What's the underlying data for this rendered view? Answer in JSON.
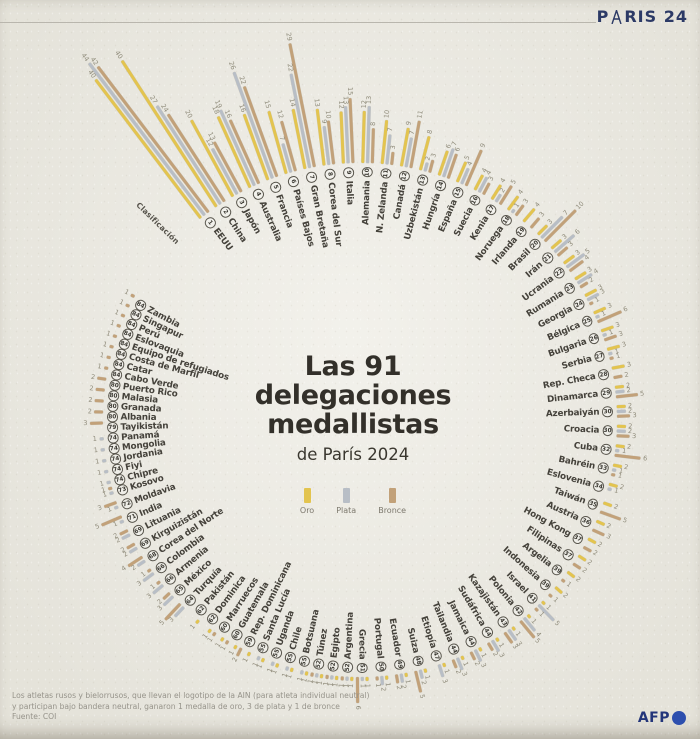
{
  "header": {
    "brand_p": "P",
    "brand_rest": "RIS 24"
  },
  "title": {
    "line1": "Las 91 delegaciones",
    "line2": "medallistas",
    "subtitle": "de París 2024"
  },
  "ranking_label": "Clasificación",
  "legend": {
    "items": [
      {
        "label": "Oro",
        "color": "#e3c44f"
      },
      {
        "label": "Plata",
        "color": "#b8bec6"
      },
      {
        "label": "Bronce",
        "color": "#c2a179"
      }
    ]
  },
  "footer": {
    "note_line1": "Los atletas rusos y bielorrusos, que llevan el logotipo de la AIN (para atleta individual neutral)",
    "note_line2": "y participan bajo bandera neutral, ganaron 1 medalla de oro, 3 de plata y 1 de bronce",
    "source": "Fuente: COI"
  },
  "logo": "AFP",
  "chart_data": {
    "type": "radial-bar",
    "title": "Las 91 delegaciones medallistas de París 2024",
    "legend": [
      "Oro",
      "Plata",
      "Bronce"
    ],
    "legend_position": "center",
    "max_value": 44,
    "colors": {
      "oro": "#e3c44f",
      "plata": "#b8bec6",
      "bronce": "#c2a179"
    },
    "delegations": [
      {
        "rank": 1,
        "name": "EEUU",
        "oro": 40,
        "plata": 44,
        "bronce": 42
      },
      {
        "rank": 2,
        "name": "China",
        "oro": 40,
        "plata": 27,
        "bronce": 24
      },
      {
        "rank": 3,
        "name": "Japón",
        "oro": 20,
        "plata": 12,
        "bronce": 13
      },
      {
        "rank": 4,
        "name": "Australia",
        "oro": 18,
        "plata": 19,
        "bronce": 16
      },
      {
        "rank": 5,
        "name": "Francia",
        "oro": 16,
        "plata": 26,
        "bronce": 22
      },
      {
        "rank": 6,
        "name": "Países Bajos",
        "oro": 15,
        "plata": 7,
        "bronce": 12
      },
      {
        "rank": 7,
        "name": "Gran Bretaña",
        "oro": 14,
        "plata": 22,
        "bronce": 29
      },
      {
        "rank": 8,
        "name": "Corea del Sur",
        "oro": 13,
        "plata": 9,
        "bronce": 10
      },
      {
        "rank": 9,
        "name": "Italia",
        "oro": 12,
        "plata": 13,
        "bronce": 15
      },
      {
        "rank": 10,
        "name": "Alemania",
        "oro": 12,
        "plata": 13,
        "bronce": 8
      },
      {
        "rank": 11,
        "name": "N. Zelanda",
        "oro": 10,
        "plata": 7,
        "bronce": 3
      },
      {
        "rank": 12,
        "name": "Canadá",
        "oro": 9,
        "plata": 7,
        "bronce": 11
      },
      {
        "rank": 13,
        "name": "Uzbekistán",
        "oro": 8,
        "plata": 2,
        "bronce": 3
      },
      {
        "rank": 14,
        "name": "Hungría",
        "oro": 6,
        "plata": 7,
        "bronce": 6
      },
      {
        "rank": 15,
        "name": "España",
        "oro": 5,
        "plata": 4,
        "bronce": 9
      },
      {
        "rank": 16,
        "name": "Suecia",
        "oro": 4,
        "plata": 4,
        "bronce": 3
      },
      {
        "rank": 17,
        "name": "Kenia",
        "oro": 4,
        "plata": 2,
        "bronce": 5
      },
      {
        "rank": 18,
        "name": "Noruega",
        "oro": 4,
        "plata": 1,
        "bronce": 3
      },
      {
        "rank": 19,
        "name": "Irlanda",
        "oro": 4,
        "plata": 0,
        "bronce": 3
      },
      {
        "rank": 20,
        "name": "Brasil",
        "oro": 3,
        "plata": 7,
        "bronce": 10
      },
      {
        "rank": 21,
        "name": "Irán",
        "oro": 3,
        "plata": 6,
        "bronce": 3
      },
      {
        "rank": 22,
        "name": "Ucrania",
        "oro": 3,
        "plata": 5,
        "bronce": 4
      },
      {
        "rank": 23,
        "name": "Rumania",
        "oro": 3,
        "plata": 4,
        "bronce": 2
      },
      {
        "rank": 24,
        "name": "Georgia",
        "oro": 3,
        "plata": 3,
        "bronce": 1
      },
      {
        "rank": 25,
        "name": "Bélgica",
        "oro": 3,
        "plata": 1,
        "bronce": 6
      },
      {
        "rank": 26,
        "name": "Bulgaria",
        "oro": 3,
        "plata": 1,
        "bronce": 3
      },
      {
        "rank": 27,
        "name": "Serbia",
        "oro": 3,
        "plata": 1,
        "bronce": 1
      },
      {
        "rank": 28,
        "name": "Rep. Checa",
        "oro": 3,
        "plata": 0,
        "bronce": 2
      },
      {
        "rank": 29,
        "name": "Dinamarca",
        "oro": 2,
        "plata": 2,
        "bronce": 5
      },
      {
        "rank": 30,
        "name": "Azerbaiyán",
        "oro": 2,
        "plata": 2,
        "bronce": 3
      },
      {
        "rank": 30,
        "name": "Croacia",
        "oro": 2,
        "plata": 2,
        "bronce": 3
      },
      {
        "rank": 32,
        "name": "Cuba",
        "oro": 2,
        "plata": 1,
        "bronce": 6
      },
      {
        "rank": 33,
        "name": "Bahréin",
        "oro": 2,
        "plata": 1,
        "bronce": 1
      },
      {
        "rank": 34,
        "name": "Eslovenia",
        "oro": 2,
        "plata": 1,
        "bronce": 0
      },
      {
        "rank": 35,
        "name": "Taiwán",
        "oro": 2,
        "plata": 0,
        "bronce": 5
      },
      {
        "rank": 36,
        "name": "Austria",
        "oro": 2,
        "plata": 0,
        "bronce": 3
      },
      {
        "rank": 37,
        "name": "Hong Kong",
        "oro": 2,
        "plata": 0,
        "bronce": 2
      },
      {
        "rank": 37,
        "name": "Filipinas",
        "oro": 2,
        "plata": 0,
        "bronce": 2
      },
      {
        "rank": 39,
        "name": "Argelia",
        "oro": 2,
        "plata": 0,
        "bronce": 1
      },
      {
        "rank": 39,
        "name": "Indonesia",
        "oro": 2,
        "plata": 0,
        "bronce": 1
      },
      {
        "rank": 41,
        "name": "Israel",
        "oro": 1,
        "plata": 5,
        "bronce": 1
      },
      {
        "rank": 42,
        "name": "Polonia",
        "oro": 1,
        "plata": 4,
        "bronce": 5
      },
      {
        "rank": 43,
        "name": "Kazajistán",
        "oro": 1,
        "plata": 3,
        "bronce": 3
      },
      {
        "rank": 44,
        "name": "Sudáfrica",
        "oro": 1,
        "plata": 3,
        "bronce": 2
      },
      {
        "rank": 44,
        "name": "Jamaica",
        "oro": 1,
        "plata": 3,
        "bronce": 2
      },
      {
        "rank": 44,
        "name": "Tailandia",
        "oro": 1,
        "plata": 3,
        "bronce": 2
      },
      {
        "rank": 47,
        "name": "Etiopía",
        "oro": 1,
        "plata": 3,
        "bronce": 0
      },
      {
        "rank": 48,
        "name": "Suiza",
        "oro": 1,
        "plata": 2,
        "bronce": 5
      },
      {
        "rank": 49,
        "name": "Ecuador",
        "oro": 1,
        "plata": 2,
        "bronce": 2
      },
      {
        "rank": 50,
        "name": "Portugal",
        "oro": 1,
        "plata": 2,
        "bronce": 1
      },
      {
        "rank": 51,
        "name": "Grecia",
        "oro": 1,
        "plata": 1,
        "bronce": 6
      },
      {
        "rank": 52,
        "name": "Argentina",
        "oro": 1,
        "plata": 1,
        "bronce": 1
      },
      {
        "rank": 52,
        "name": "Egipto",
        "oro": 1,
        "plata": 1,
        "bronce": 1
      },
      {
        "rank": 52,
        "name": "Túnez",
        "oro": 1,
        "plata": 1,
        "bronce": 1
      },
      {
        "rank": 55,
        "name": "Botsuana",
        "oro": 1,
        "plata": 1,
        "bronce": 0
      },
      {
        "rank": 55,
        "name": "Chile",
        "oro": 1,
        "plata": 1,
        "bronce": 0
      },
      {
        "rank": 55,
        "name": "Uganda",
        "oro": 1,
        "plata": 1,
        "bronce": 0
      },
      {
        "rank": 55,
        "name": "Santa Lucía",
        "oro": 1,
        "plata": 1,
        "bronce": 0
      },
      {
        "rank": 59,
        "name": "Rep. Dominicana",
        "oro": 1,
        "plata": 0,
        "bronce": 2
      },
      {
        "rank": 60,
        "name": "Guatemala",
        "oro": 1,
        "plata": 0,
        "bronce": 1
      },
      {
        "rank": 60,
        "name": "Marruecos",
        "oro": 1,
        "plata": 0,
        "bronce": 1
      },
      {
        "rank": 62,
        "name": "Dominica",
        "oro": 1,
        "plata": 0,
        "bronce": 0
      },
      {
        "rank": 62,
        "name": "Pakistán",
        "oro": 1,
        "plata": 0,
        "bronce": 0
      },
      {
        "rank": 64,
        "name": "Turquía",
        "oro": 0,
        "plata": 3,
        "bronce": 5
      },
      {
        "rank": 65,
        "name": "México",
        "oro": 0,
        "plata": 3,
        "bronce": 2
      },
      {
        "rank": 66,
        "name": "Armenia",
        "oro": 0,
        "plata": 3,
        "bronce": 1
      },
      {
        "rank": 66,
        "name": "Colombia",
        "oro": 0,
        "plata": 3,
        "bronce": 1
      },
      {
        "rank": 68,
        "name": "Corea del Norte",
        "oro": 0,
        "plata": 2,
        "bronce": 4
      },
      {
        "rank": 69,
        "name": "Kirguizistán",
        "oro": 0,
        "plata": 2,
        "bronce": 2
      },
      {
        "rank": 69,
        "name": "Lituania",
        "oro": 0,
        "plata": 2,
        "bronce": 2
      },
      {
        "rank": 71,
        "name": "India",
        "oro": 0,
        "plata": 1,
        "bronce": 5
      },
      {
        "rank": 72,
        "name": "Moldavia",
        "oro": 0,
        "plata": 1,
        "bronce": 3
      },
      {
        "rank": 73,
        "name": "Kosovo",
        "oro": 0,
        "plata": 1,
        "bronce": 1
      },
      {
        "rank": 74,
        "name": "Chipre",
        "oro": 0,
        "plata": 1,
        "bronce": 0
      },
      {
        "rank": 74,
        "name": "Fiyi",
        "oro": 0,
        "plata": 1,
        "bronce": 0
      },
      {
        "rank": 74,
        "name": "Jordania",
        "oro": 0,
        "plata": 1,
        "bronce": 0
      },
      {
        "rank": 74,
        "name": "Mongolia",
        "oro": 0,
        "plata": 1,
        "bronce": 0
      },
      {
        "rank": 74,
        "name": "Panamá",
        "oro": 0,
        "plata": 1,
        "bronce": 0
      },
      {
        "rank": 79,
        "name": "Tayikistán",
        "oro": 0,
        "plata": 0,
        "bronce": 3
      },
      {
        "rank": 80,
        "name": "Albania",
        "oro": 0,
        "plata": 0,
        "bronce": 2
      },
      {
        "rank": 80,
        "name": "Granada",
        "oro": 0,
        "plata": 0,
        "bronce": 2
      },
      {
        "rank": 80,
        "name": "Malasia",
        "oro": 0,
        "plata": 0,
        "bronce": 2
      },
      {
        "rank": 80,
        "name": "Puerto Rico",
        "oro": 0,
        "plata": 0,
        "bronce": 2
      },
      {
        "rank": 84,
        "name": "Cabo Verde",
        "oro": 0,
        "plata": 0,
        "bronce": 1
      },
      {
        "rank": 84,
        "name": "Catar",
        "oro": 0,
        "plata": 0,
        "bronce": 1
      },
      {
        "rank": 84,
        "name": "Costa de Marfil",
        "oro": 0,
        "plata": 0,
        "bronce": 1
      },
      {
        "rank": 84,
        "name": "Equipo de refugiados",
        "oro": 0,
        "plata": 0,
        "bronce": 1
      },
      {
        "rank": 84,
        "name": "Eslovaquia",
        "oro": 0,
        "plata": 0,
        "bronce": 1
      },
      {
        "rank": 84,
        "name": "Perú",
        "oro": 0,
        "plata": 0,
        "bronce": 1
      },
      {
        "rank": 84,
        "name": "Singapur",
        "oro": 0,
        "plata": 0,
        "bronce": 1
      },
      {
        "rank": 84,
        "name": "Zambia",
        "oro": 0,
        "plata": 0,
        "bronce": 1
      }
    ]
  }
}
